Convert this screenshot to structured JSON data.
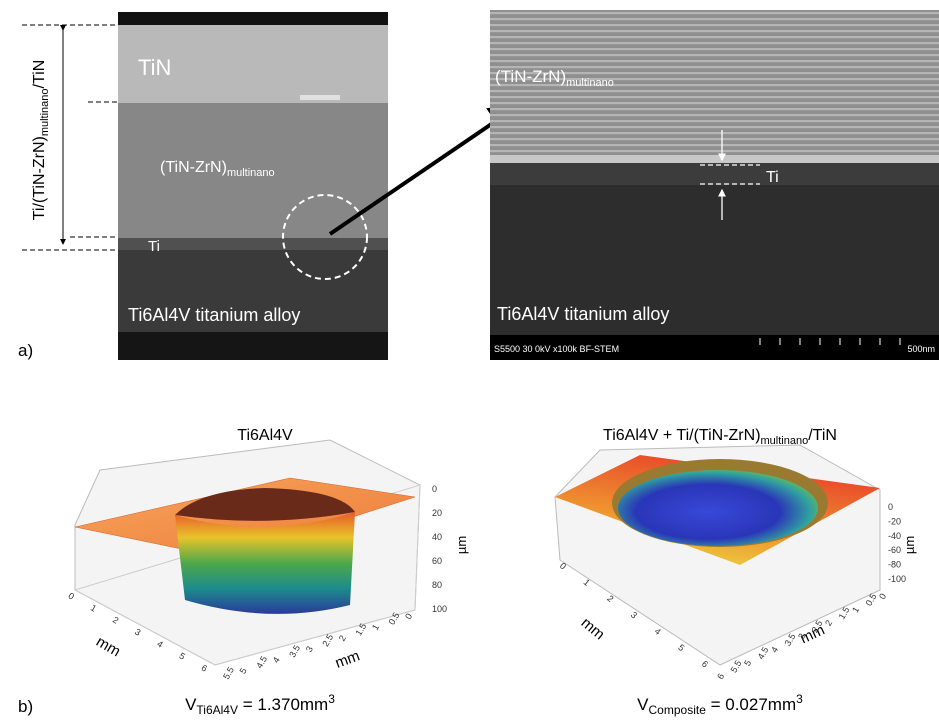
{
  "panel_a": {
    "label": "a)",
    "stack_label": {
      "main": "Ti/(TiN-ZrN)",
      "sub": "multinano",
      "tail": "/TiN"
    },
    "left_image": {
      "top_layer": "TiN",
      "multilayer": {
        "main": "(TiN-ZrN)",
        "sub": "multinano"
      },
      "interlayer": "Ti",
      "substrate": "Ti6Al4V titanium alloy"
    },
    "right_image": {
      "multilayer": {
        "main": "(TiN-ZrN)",
        "sub": "multinano"
      },
      "interlayer": "Ti",
      "substrate": "Ti6Al4V titanium alloy",
      "info_bar": "S5500 30 0kV x100k BF-STEM",
      "scale": "500nm"
    }
  },
  "panel_b": {
    "label": "b)",
    "left_plot": {
      "title": "Ti6Al4V",
      "x_label": "mm",
      "y_label": "mm",
      "z_label": "µm",
      "x_ticks": [
        0,
        1,
        2,
        3,
        4,
        5,
        6
      ],
      "y_ticks": [
        5.5,
        5,
        4.5,
        4,
        3.5,
        3,
        2.5,
        2,
        1.5,
        1,
        0.5,
        0
      ],
      "z_ticks": [
        0,
        20,
        40,
        60,
        80,
        100
      ],
      "volume": {
        "symbol": "V",
        "sub": "Ti6Al4V",
        "rest": " = 1.370mm",
        "sup": "3"
      }
    },
    "right_plot": {
      "title": {
        "main": "Ti6Al4V + Ti/(TiN-ZrN)",
        "sub": "multinano",
        "tail": "/TiN"
      },
      "x_label": "mm",
      "y_label": "mm",
      "z_label": "µm",
      "x_ticks": [
        0,
        1,
        2,
        3,
        4,
        5,
        6
      ],
      "y_ticks": [
        6,
        5.5,
        5,
        4.5,
        4,
        3.5,
        3,
        2.5,
        2,
        1.5,
        1,
        0.5,
        0
      ],
      "z_ticks": [
        0,
        -20,
        -40,
        -60,
        -80,
        -100
      ],
      "volume": {
        "symbol": "V",
        "sub": "Composite",
        "rest": " = 0.027mm",
        "sup": "3"
      }
    }
  }
}
